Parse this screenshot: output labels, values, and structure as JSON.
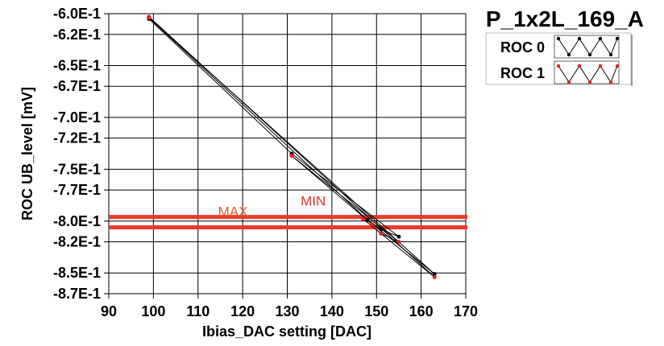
{
  "chart_data": {
    "type": "line",
    "title": "P_1x2L_169_A",
    "xlabel": "Ibias_DAC setting [DAC]",
    "ylabel": "ROC UB_level [mV]",
    "xlim": [
      90,
      170
    ],
    "ylim": [
      -0.87,
      -0.6
    ],
    "x_ticks": [
      90,
      100,
      110,
      120,
      130,
      140,
      150,
      160,
      170
    ],
    "y_ticks": [
      {
        "value": -0.6,
        "label": "-6.0E-1"
      },
      {
        "value": -0.62,
        "label": "-6.2E-1"
      },
      {
        "value": -0.65,
        "label": "-6.5E-1"
      },
      {
        "value": -0.67,
        "label": "-6.7E-1"
      },
      {
        "value": -0.7,
        "label": "-7.0E-1"
      },
      {
        "value": -0.72,
        "label": "-7.2E-1"
      },
      {
        "value": -0.75,
        "label": "-7.5E-1"
      },
      {
        "value": -0.77,
        "label": "-7.7E-1"
      },
      {
        "value": -0.8,
        "label": "-8.0E-1"
      },
      {
        "value": -0.82,
        "label": "-8.2E-1"
      },
      {
        "value": -0.85,
        "label": "-8.5E-1"
      },
      {
        "value": -0.87,
        "label": "-8.7E-1"
      }
    ],
    "grid": true,
    "legend_position": "top-right",
    "series": [
      {
        "name": "ROC 0",
        "color": "#000000",
        "marker_color": "#000000",
        "points": [
          [
            99,
            -0.604
          ],
          [
            163,
            -0.851
          ],
          [
            148,
            -0.799
          ],
          [
            151,
            -0.808
          ],
          [
            155,
            -0.815
          ],
          [
            131,
            -0.735
          ],
          [
            99,
            -0.605
          ]
        ]
      },
      {
        "name": "ROC 1",
        "color": "#000000",
        "marker_color": "#e02020",
        "points": [
          [
            99,
            -0.603
          ],
          [
            163,
            -0.854
          ],
          [
            147,
            -0.798
          ],
          [
            151,
            -0.812
          ],
          [
            155,
            -0.82
          ],
          [
            131,
            -0.737
          ],
          [
            149,
            -0.803
          ],
          [
            99,
            -0.604
          ]
        ]
      }
    ],
    "reference_lines": [
      {
        "y": -0.796,
        "color": "#e83a2a"
      },
      {
        "y": -0.806,
        "color": "#e83a2a"
      }
    ],
    "annotations": [
      {
        "text": "MAX",
        "x": 114.5,
        "y": -0.795,
        "color": "#e06030"
      },
      {
        "text": "MIN",
        "x": 133,
        "y": -0.785,
        "color": "#e03030"
      }
    ]
  }
}
